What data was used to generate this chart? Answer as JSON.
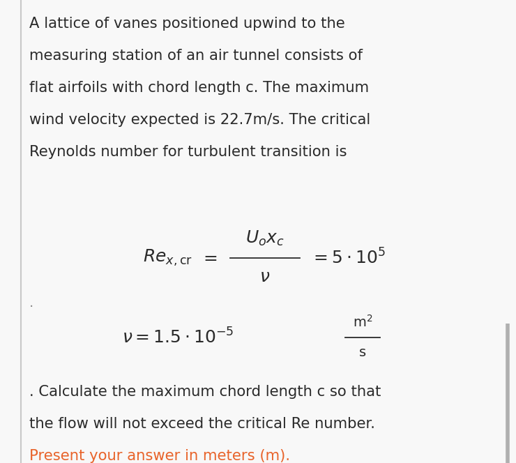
{
  "bg_color": "#f8f8f8",
  "text_color": "#2a2a2a",
  "orange_color": "#e8632a",
  "para_line1": "A lattice of vanes positioned upwind to the",
  "para_line2": "measuring station of an air tunnel consists of",
  "para_line3": "flat airfoils with chord length c. The maximum",
  "para_line4": "wind velocity expected is 22.7m/s. The critical",
  "para_line5": "Reynolds number for turbulent transition is",
  "footer_text1": ". Calculate the maximum chord length c so that",
  "footer_text2": "the flow will not exceed the critical Re number.",
  "footer_text3": "Present your answer in meters (m).",
  "right_bar_color": "#b0b0b0",
  "left_bar_color": "#c8c8c8",
  "para_fontsize": 15.2,
  "formula_fontsize": 18,
  "footer_fontsize": 15.2
}
